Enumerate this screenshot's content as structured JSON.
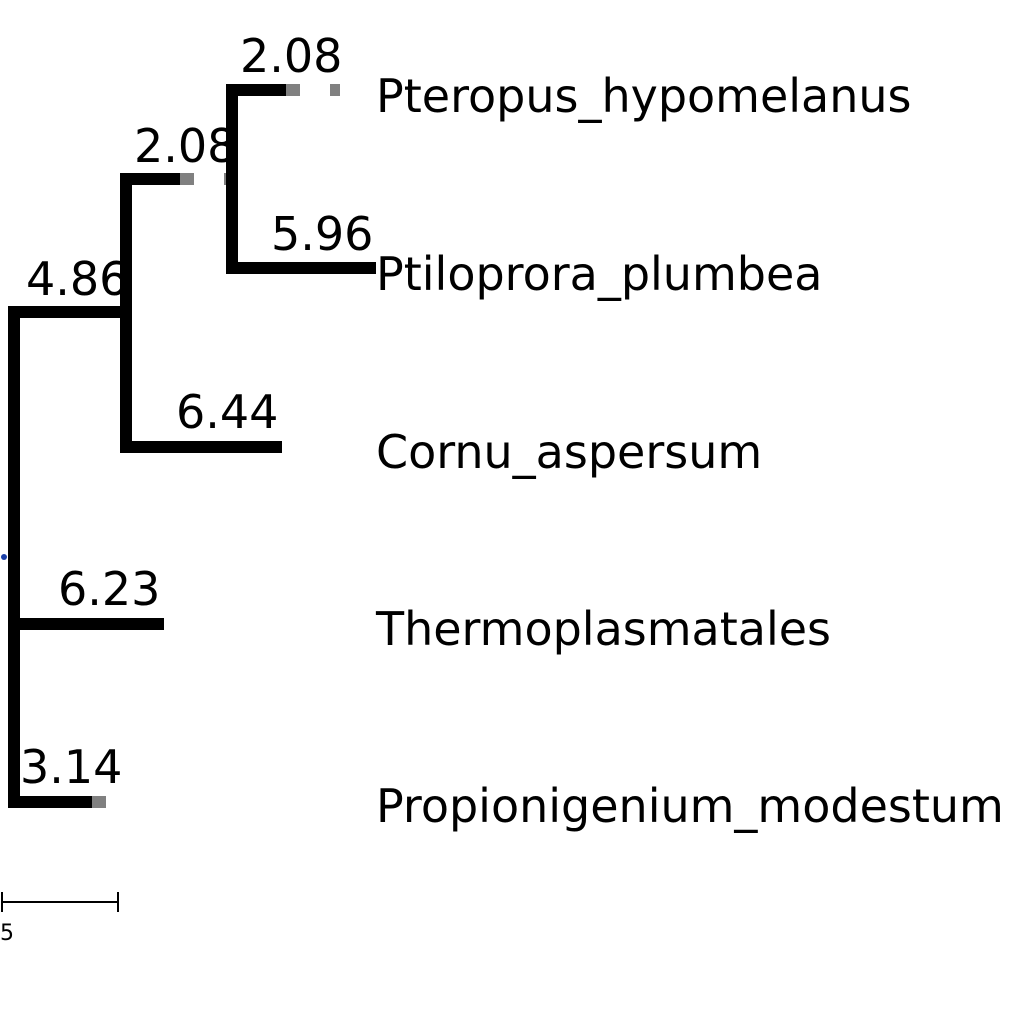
{
  "tree": {
    "tips": [
      {
        "id": "tip-pteropus",
        "label": "Pteropus_hypomelanus",
        "branch_length": "2.08"
      },
      {
        "id": "tip-ptiloprora",
        "label": "Ptiloprora_plumbea",
        "branch_length": "5.96"
      },
      {
        "id": "tip-cornu",
        "label": "Cornu_aspersum",
        "branch_length": "6.44"
      },
      {
        "id": "tip-thermo",
        "label": "Thermoplasmatales",
        "branch_length": "6.23"
      },
      {
        "id": "tip-propioni",
        "label": "Propionigenium_modestum",
        "branch_length": "3.14"
      }
    ],
    "internal": [
      {
        "id": "node-pteropus-ptiloprora",
        "branch_length": "2.08"
      },
      {
        "id": "node-with-cornu",
        "branch_length": "4.86"
      }
    ],
    "scale_bar": {
      "label": "5",
      "length": 5
    },
    "colors": {
      "branch": "#000000",
      "guide": "#808080",
      "root_marker": "#1a3fa8"
    }
  }
}
